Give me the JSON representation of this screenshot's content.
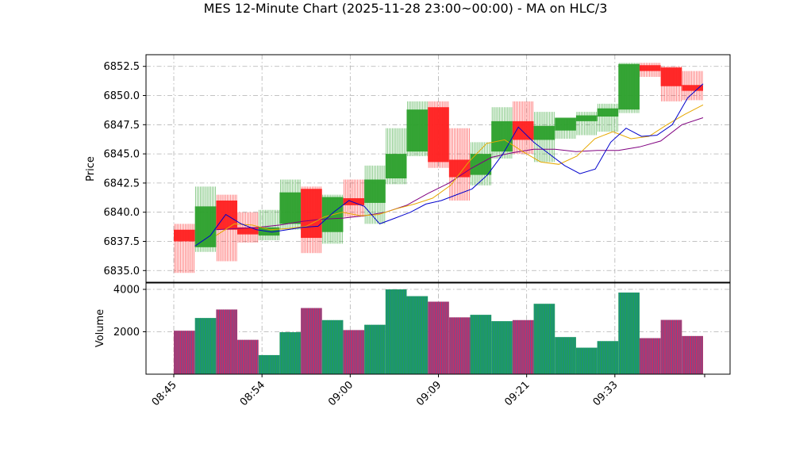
{
  "chart_data": {
    "type": "candlestick",
    "title": "MES 12-Minute Chart (2025-11-28 23:00~00:00) - MA on HLC/3",
    "xlabel": "",
    "price_ylabel": "Price",
    "volume_ylabel": "Volume",
    "price_ylim": [
      6834.0,
      6853.5
    ],
    "price_ticks": [
      6835.0,
      6837.5,
      6840.0,
      6842.5,
      6845.0,
      6847.5,
      6850.0,
      6852.5
    ],
    "price_tick_labels": [
      "6835.0",
      "6837.5",
      "6840.0",
      "6842.5",
      "6845.0",
      "6847.5",
      "6850.0",
      "6852.5"
    ],
    "volume_ylim": [
      0,
      4300
    ],
    "volume_ticks": [
      2000,
      4000
    ],
    "volume_tick_labels": [
      "2000",
      "4000"
    ],
    "time_labels": [
      "08:45",
      "08:54",
      "09:00",
      "09:09",
      "09:21",
      "09:33"
    ],
    "grid": true,
    "colors": {
      "up": "#2ca02c",
      "down": "#ff2020",
      "volume_up": "#1f9e5a",
      "volume_down": "#c0306a",
      "volume_edge": "#1f77b4",
      "ma_fast": "#0000cc",
      "ma_mid": "#e6a800",
      "ma_slow": "#800080"
    },
    "candles": [
      {
        "open": 6838.5,
        "high": 6839.0,
        "low": 6834.8,
        "close": 6837.5,
        "volume": 2050
      },
      {
        "open": 6837.0,
        "high": 6842.2,
        "low": 6836.6,
        "close": 6840.5,
        "volume": 2650
      },
      {
        "open": 6841.0,
        "high": 6841.5,
        "low": 6835.8,
        "close": 6838.5,
        "volume": 3050
      },
      {
        "open": 6838.7,
        "high": 6840.0,
        "low": 6837.4,
        "close": 6838.1,
        "volume": 1620
      },
      {
        "open": 6838.0,
        "high": 6840.2,
        "low": 6837.6,
        "close": 6838.7,
        "volume": 900
      },
      {
        "open": 6839.0,
        "high": 6842.8,
        "low": 6838.5,
        "close": 6841.7,
        "volume": 1980
      },
      {
        "open": 6842.0,
        "high": 6842.2,
        "low": 6836.5,
        "close": 6837.8,
        "volume": 3120
      },
      {
        "open": 6838.3,
        "high": 6841.5,
        "low": 6837.3,
        "close": 6841.3,
        "volume": 2550
      },
      {
        "open": 6841.2,
        "high": 6842.8,
        "low": 6839.6,
        "close": 6840.6,
        "volume": 2080
      },
      {
        "open": 6840.8,
        "high": 6844.0,
        "low": 6839.0,
        "close": 6842.8,
        "volume": 2330
      },
      {
        "open": 6842.9,
        "high": 6847.2,
        "low": 6842.4,
        "close": 6845.0,
        "volume": 4000
      },
      {
        "open": 6845.2,
        "high": 6849.5,
        "low": 6844.8,
        "close": 6848.8,
        "volume": 3680
      },
      {
        "open": 6849.0,
        "high": 6849.5,
        "low": 6843.8,
        "close": 6844.3,
        "volume": 3420
      },
      {
        "open": 6844.5,
        "high": 6847.2,
        "low": 6841.0,
        "close": 6843.0,
        "volume": 2680
      },
      {
        "open": 6843.2,
        "high": 6846.0,
        "low": 6842.3,
        "close": 6845.0,
        "volume": 2800
      },
      {
        "open": 6845.2,
        "high": 6849.0,
        "low": 6844.6,
        "close": 6847.8,
        "volume": 2500
      },
      {
        "open": 6847.8,
        "high": 6849.5,
        "low": 6845.0,
        "close": 6846.2,
        "volume": 2550
      },
      {
        "open": 6846.2,
        "high": 6848.6,
        "low": 6844.3,
        "close": 6847.4,
        "volume": 3320
      },
      {
        "open": 6847.0,
        "high": 6848.0,
        "low": 6846.3,
        "close": 6848.1,
        "volume": 1750
      },
      {
        "open": 6847.8,
        "high": 6848.6,
        "low": 6846.6,
        "close": 6848.3,
        "volume": 1250
      },
      {
        "open": 6848.2,
        "high": 6849.3,
        "low": 6846.9,
        "close": 6848.9,
        "volume": 1560
      },
      {
        "open": 6848.8,
        "high": 6852.8,
        "low": 6848.5,
        "close": 6852.7,
        "volume": 3850
      },
      {
        "open": 6852.6,
        "high": 6852.8,
        "low": 6851.6,
        "close": 6852.1,
        "volume": 1700
      },
      {
        "open": 6852.4,
        "high": 6852.5,
        "low": 6849.5,
        "close": 6850.8,
        "volume": 2560
      },
      {
        "open": 6850.9,
        "high": 6852.1,
        "low": 6849.6,
        "close": 6850.4,
        "volume": 1800
      }
    ],
    "ma_fast": [
      6837.1,
      6838.0,
      6839.8,
      6839.0,
      6838.5,
      6838.3,
      6838.5,
      6838.7,
      6838.8,
      6840.0,
      6841.0,
      6840.5,
      6839.0,
      6839.5,
      6840.0,
      6840.7,
      6841.0,
      6841.5,
      6842.0,
      6843.2,
      6845.0,
      6847.3,
      6846.0,
      6845.0,
      6844.0,
      6843.3,
      6843.7,
      6846.0,
      6847.2,
      6846.5,
      6846.6,
      6847.5,
      6849.8,
      6851.0
    ],
    "ma_mid": [
      6838.0,
      6839.0,
      6838.9,
      6838.5,
      6838.6,
      6838.8,
      6839.6,
      6840.0,
      6839.7,
      6839.8,
      6840.3,
      6840.7,
      6841.2,
      6842.3,
      6844.3,
      6845.9,
      6846.2,
      6845.2,
      6844.3,
      6844.1,
      6844.8,
      6846.3,
      6846.9,
      6846.3,
      6846.5,
      6847.5,
      6848.4,
      6849.2
    ],
    "ma_slow": [
      6838.5,
      6838.6,
      6838.7,
      6838.9,
      6839.2,
      6839.4,
      6839.5,
      6839.7,
      6840.0,
      6840.6,
      6841.6,
      6842.5,
      6843.7,
      6844.7,
      6845.1,
      6845.4,
      6845.4,
      6845.2,
      6845.3,
      6845.3,
      6845.6,
      6846.1,
      6847.5,
      6848.1
    ]
  }
}
